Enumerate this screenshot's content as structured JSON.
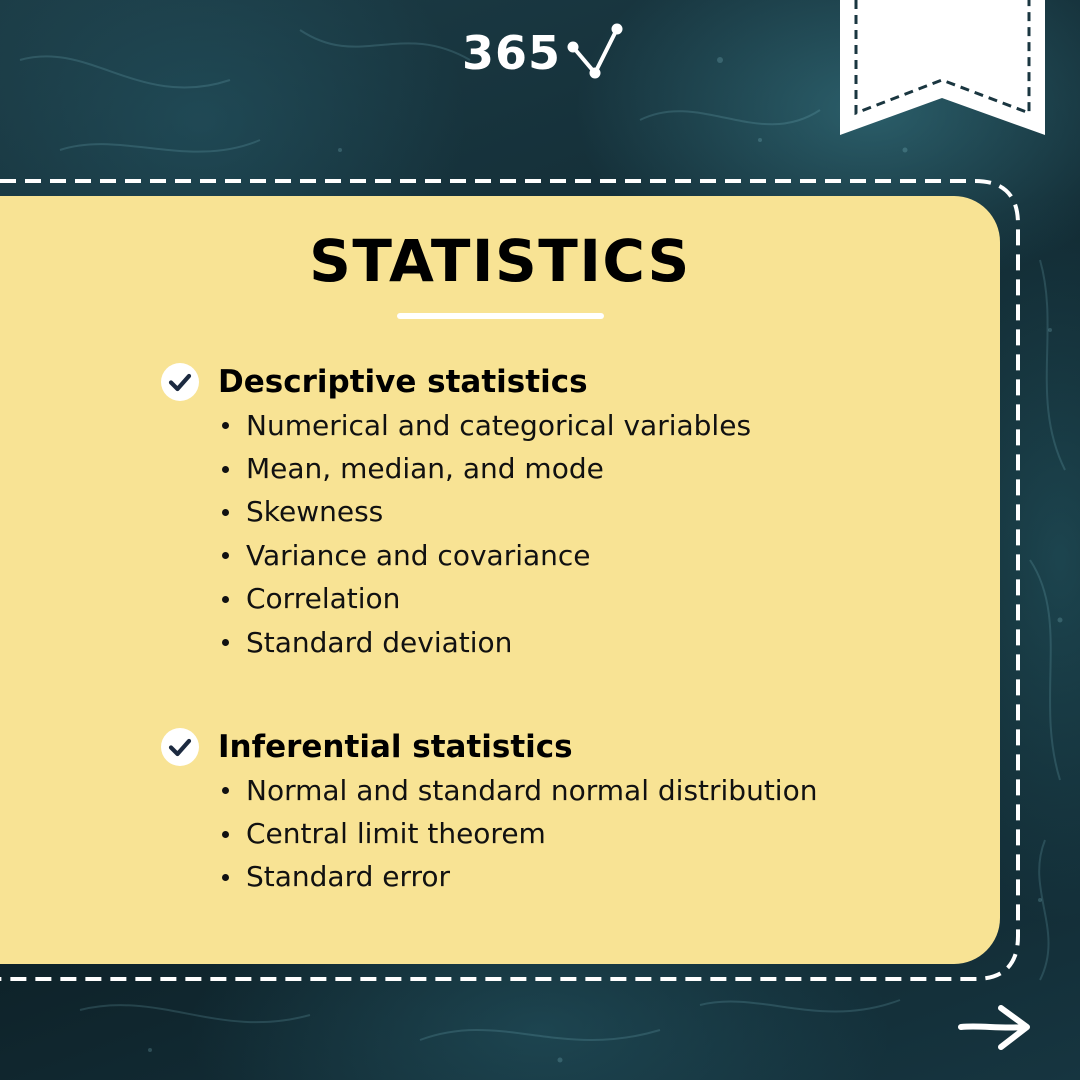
{
  "logo": {
    "text": "365"
  },
  "card": {
    "title": "STATISTICS",
    "sections": [
      {
        "title": "Descriptive statistics",
        "items": [
          "Numerical and categorical variables",
          "Mean, median, and mode",
          "Skewness",
          "Variance and covariance",
          "Correlation",
          "Standard deviation"
        ]
      },
      {
        "title": "Inferential statistics",
        "items": [
          "Normal and standard normal distribution",
          "Central limit theorem",
          "Standard error"
        ]
      }
    ]
  },
  "icons": {
    "logo_mark": "connected-nodes-check-icon",
    "section_marker": "check-circle-icon",
    "bookmark": "bookmark-ribbon-icon",
    "next": "arrow-right-icon"
  },
  "colors": {
    "card_background": "#f8e394",
    "background_dark": "#132d36",
    "accent_white": "#ffffff",
    "text": "#000000"
  }
}
